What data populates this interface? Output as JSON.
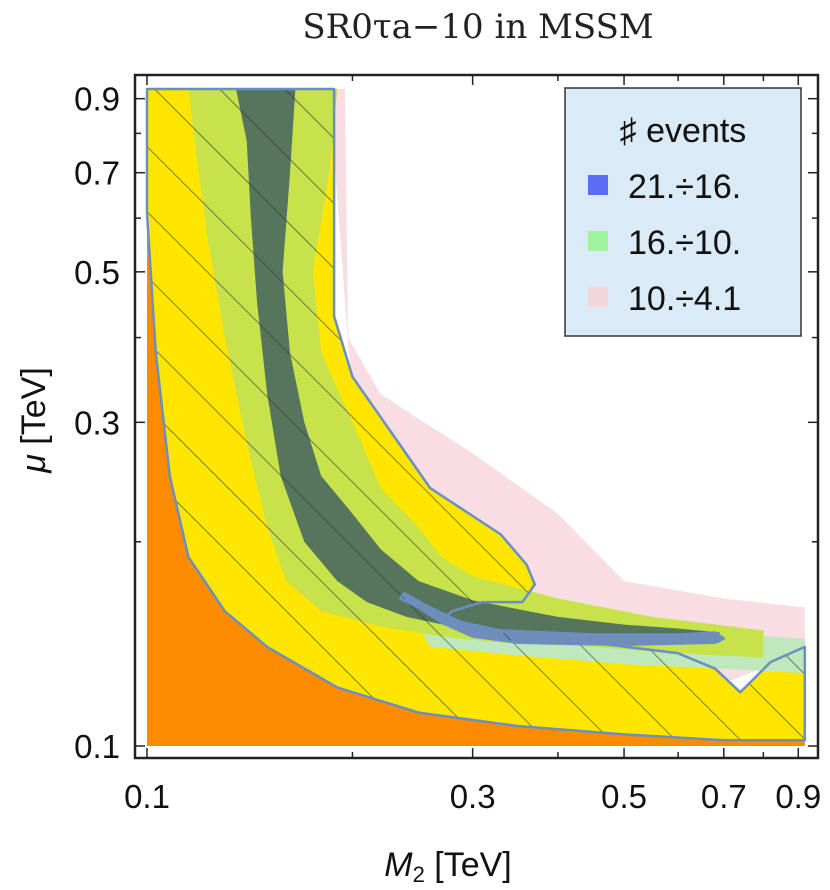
{
  "chart_data": {
    "type": "contour",
    "title": "SR0τa−10 in MSSM",
    "xlabel": {
      "var": "M",
      "sub": "2",
      "unit": " [TeV]"
    },
    "ylabel": {
      "var": "μ",
      "unit": " [TeV]"
    },
    "xscale": "log",
    "yscale": "log",
    "xlim": [
      0.1,
      0.93
    ],
    "ylim": [
      0.1,
      0.93
    ],
    "xticks": [
      {
        "value": 0.1,
        "label": "0.1"
      },
      {
        "value": 0.3,
        "label": "0.3"
      },
      {
        "value": 0.5,
        "label": "0.5"
      },
      {
        "value": 0.7,
        "label": "0.7"
      },
      {
        "value": 0.9,
        "label": "0.9"
      }
    ],
    "yticks": [
      {
        "value": 0.1,
        "label": "0.1"
      },
      {
        "value": 0.3,
        "label": "0.3"
      },
      {
        "value": 0.5,
        "label": "0.5"
      },
      {
        "value": 0.7,
        "label": "0.7"
      },
      {
        "value": 0.9,
        "label": "0.9"
      }
    ],
    "legend": {
      "title": "♯ events",
      "position": "top-right",
      "background": "#dbeaf7",
      "entries": [
        {
          "label": "21.÷16.",
          "color": "#5b6cf6"
        },
        {
          "label": "16.÷10.",
          "color": "#9ff29e"
        },
        {
          "label": "10.÷4.1",
          "color": "#f3d6dc"
        }
      ]
    },
    "colors": {
      "excluded_region": "#fb8c00",
      "contour_outer": "#fee600",
      "contour_mid": "#c7e24a",
      "contour_inner": "#55755c",
      "pink_band": "#f8dde2",
      "light_green_band": "#bfe8bd",
      "blue_band": "#6f8db6",
      "boundary_line": "#6b8fc2",
      "hatch_line": "#333333"
    },
    "regions": [
      {
        "name": "excluded",
        "points": [
          [
            0.1,
            0.1
          ],
          [
            0.1,
            0.61
          ],
          [
            0.103,
            0.38
          ],
          [
            0.108,
            0.25
          ],
          [
            0.115,
            0.19
          ],
          [
            0.13,
            0.158
          ],
          [
            0.15,
            0.14
          ],
          [
            0.19,
            0.122
          ],
          [
            0.25,
            0.112
          ],
          [
            0.35,
            0.107
          ],
          [
            0.5,
            0.104
          ],
          [
            0.7,
            0.102
          ],
          [
            0.92,
            0.102
          ],
          [
            0.92,
            0.1
          ]
        ]
      },
      {
        "name": "pink-band",
        "points": [
          [
            0.185,
            0.93
          ],
          [
            0.195,
            0.93
          ],
          [
            0.197,
            0.4
          ],
          [
            0.22,
            0.33
          ],
          [
            0.3,
            0.27
          ],
          [
            0.4,
            0.22
          ],
          [
            0.5,
            0.175
          ],
          [
            0.7,
            0.165
          ],
          [
            0.92,
            0.16
          ],
          [
            0.92,
            0.138
          ],
          [
            0.72,
            0.125
          ],
          [
            0.5,
            0.135
          ],
          [
            0.3,
            0.17
          ],
          [
            0.2,
            0.32
          ]
        ]
      },
      {
        "name": "outer-yellow",
        "points": [
          [
            0.1,
            0.93
          ],
          [
            0.188,
            0.93
          ],
          [
            0.188,
            0.43
          ],
          [
            0.2,
            0.35
          ],
          [
            0.26,
            0.24
          ],
          [
            0.33,
            0.205
          ],
          [
            0.36,
            0.185
          ],
          [
            0.37,
            0.173
          ],
          [
            0.355,
            0.163
          ],
          [
            0.31,
            0.163
          ],
          [
            0.28,
            0.158
          ],
          [
            0.27,
            0.153
          ],
          [
            0.35,
            0.146
          ],
          [
            0.45,
            0.142
          ],
          [
            0.6,
            0.137
          ],
          [
            0.68,
            0.13
          ],
          [
            0.74,
            0.12
          ],
          [
            0.82,
            0.133
          ],
          [
            0.92,
            0.14
          ],
          [
            0.92,
            0.102
          ],
          [
            0.7,
            0.102
          ],
          [
            0.5,
            0.104
          ],
          [
            0.35,
            0.107
          ],
          [
            0.25,
            0.112
          ],
          [
            0.19,
            0.122
          ],
          [
            0.15,
            0.14
          ],
          [
            0.13,
            0.158
          ],
          [
            0.115,
            0.19
          ],
          [
            0.108,
            0.25
          ],
          [
            0.103,
            0.38
          ],
          [
            0.1,
            0.61
          ]
        ]
      },
      {
        "name": "light-green-band",
        "points": [
          [
            0.24,
            0.162
          ],
          [
            0.3,
            0.155
          ],
          [
            0.4,
            0.147
          ],
          [
            0.5,
            0.146
          ],
          [
            0.6,
            0.144
          ],
          [
            0.8,
            0.145
          ],
          [
            0.92,
            0.144
          ],
          [
            0.92,
            0.128
          ],
          [
            0.7,
            0.13
          ],
          [
            0.5,
            0.132
          ],
          [
            0.35,
            0.136
          ],
          [
            0.26,
            0.14
          ]
        ]
      },
      {
        "name": "mid-green",
        "points": [
          [
            0.115,
            0.93
          ],
          [
            0.19,
            0.93
          ],
          [
            0.185,
            0.7
          ],
          [
            0.175,
            0.5
          ],
          [
            0.18,
            0.38
          ],
          [
            0.2,
            0.3
          ],
          [
            0.22,
            0.24
          ],
          [
            0.25,
            0.21
          ],
          [
            0.27,
            0.19
          ],
          [
            0.3,
            0.178
          ],
          [
            0.4,
            0.165
          ],
          [
            0.55,
            0.155
          ],
          [
            0.72,
            0.15
          ],
          [
            0.8,
            0.148
          ],
          [
            0.8,
            0.135
          ],
          [
            0.6,
            0.137
          ],
          [
            0.45,
            0.14
          ],
          [
            0.33,
            0.142
          ],
          [
            0.27,
            0.145
          ],
          [
            0.22,
            0.15
          ],
          [
            0.18,
            0.158
          ],
          [
            0.16,
            0.175
          ],
          [
            0.15,
            0.21
          ],
          [
            0.14,
            0.28
          ],
          [
            0.13,
            0.4
          ],
          [
            0.123,
            0.55
          ],
          [
            0.118,
            0.75
          ]
        ]
      },
      {
        "name": "inner-dark",
        "points": [
          [
            0.135,
            0.93
          ],
          [
            0.165,
            0.93
          ],
          [
            0.162,
            0.7
          ],
          [
            0.158,
            0.5
          ],
          [
            0.162,
            0.38
          ],
          [
            0.17,
            0.3
          ],
          [
            0.18,
            0.25
          ],
          [
            0.2,
            0.22
          ],
          [
            0.22,
            0.195
          ],
          [
            0.25,
            0.175
          ],
          [
            0.3,
            0.164
          ],
          [
            0.4,
            0.155
          ],
          [
            0.5,
            0.151
          ],
          [
            0.6,
            0.149
          ],
          [
            0.69,
            0.147
          ],
          [
            0.69,
            0.142
          ],
          [
            0.6,
            0.142
          ],
          [
            0.5,
            0.143
          ],
          [
            0.42,
            0.144
          ],
          [
            0.34,
            0.146
          ],
          [
            0.28,
            0.15
          ],
          [
            0.24,
            0.155
          ],
          [
            0.21,
            0.163
          ],
          [
            0.19,
            0.175
          ],
          [
            0.17,
            0.2
          ],
          [
            0.157,
            0.25
          ],
          [
            0.15,
            0.33
          ],
          [
            0.145,
            0.45
          ],
          [
            0.142,
            0.6
          ],
          [
            0.14,
            0.78
          ]
        ]
      },
      {
        "name": "blue-band",
        "points": [
          [
            0.238,
            0.168
          ],
          [
            0.26,
            0.16
          ],
          [
            0.29,
            0.152
          ],
          [
            0.33,
            0.148
          ],
          [
            0.45,
            0.146
          ],
          [
            0.6,
            0.146
          ],
          [
            0.68,
            0.147
          ],
          [
            0.7,
            0.144
          ],
          [
            0.68,
            0.142
          ],
          [
            0.5,
            0.141
          ],
          [
            0.35,
            0.142
          ],
          [
            0.3,
            0.145
          ],
          [
            0.27,
            0.152
          ],
          [
            0.25,
            0.16
          ],
          [
            0.235,
            0.165
          ]
        ]
      }
    ],
    "boundary": {
      "name": "outer-contour-line",
      "points": [
        [
          0.1,
          0.61
        ],
        [
          0.1,
          0.93
        ],
        [
          0.188,
          0.93
        ],
        [
          0.188,
          0.43
        ],
        [
          0.2,
          0.35
        ],
        [
          0.26,
          0.24
        ],
        [
          0.33,
          0.205
        ],
        [
          0.36,
          0.185
        ],
        [
          0.37,
          0.173
        ],
        [
          0.355,
          0.163
        ],
        [
          0.31,
          0.163
        ],
        [
          0.28,
          0.158
        ],
        [
          0.27,
          0.153
        ],
        [
          0.35,
          0.146
        ],
        [
          0.45,
          0.142
        ],
        [
          0.6,
          0.137
        ],
        [
          0.68,
          0.13
        ],
        [
          0.74,
          0.12
        ],
        [
          0.82,
          0.133
        ],
        [
          0.92,
          0.14
        ],
        [
          0.92,
          0.102
        ],
        [
          0.7,
          0.102
        ],
        [
          0.5,
          0.104
        ],
        [
          0.35,
          0.107
        ],
        [
          0.25,
          0.112
        ],
        [
          0.19,
          0.122
        ],
        [
          0.15,
          0.14
        ],
        [
          0.13,
          0.158
        ],
        [
          0.115,
          0.19
        ],
        [
          0.108,
          0.25
        ],
        [
          0.103,
          0.38
        ],
        [
          0.1,
          0.61
        ]
      ]
    },
    "blue_boundary": {
      "name": "inner-contour-line",
      "points": [
        [
          0.238,
          0.168
        ],
        [
          0.26,
          0.16
        ],
        [
          0.29,
          0.152
        ],
        [
          0.33,
          0.148
        ],
        [
          0.45,
          0.146
        ],
        [
          0.6,
          0.146
        ],
        [
          0.68,
          0.147
        ],
        [
          0.7,
          0.144
        ],
        [
          0.68,
          0.142
        ],
        [
          0.5,
          0.141
        ],
        [
          0.35,
          0.142
        ],
        [
          0.3,
          0.145
        ],
        [
          0.27,
          0.152
        ],
        [
          0.25,
          0.16
        ],
        [
          0.235,
          0.165
        ]
      ]
    }
  }
}
